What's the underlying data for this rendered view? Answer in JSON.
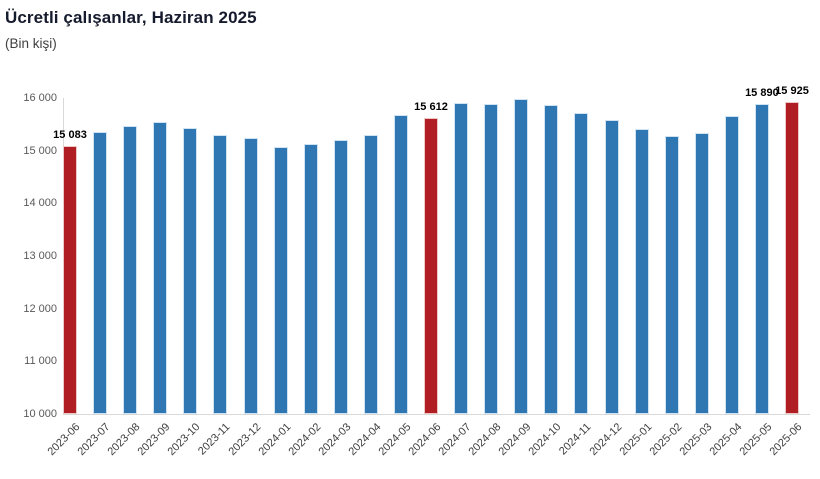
{
  "chart_data": {
    "type": "bar",
    "title": "Ücretli çalışanlar, Haziran 2025",
    "subtitle": "(Bin kişi)",
    "xlabel": "",
    "ylabel": "",
    "ylim": [
      10000,
      16000
    ],
    "grid": false,
    "legend": "none",
    "categories": [
      "2023-06",
      "2023-07",
      "2023-08",
      "2023-09",
      "2023-10",
      "2023-11",
      "2023-12",
      "2024-01",
      "2024-02",
      "2024-03",
      "2024-04",
      "2024-05",
      "2024-06",
      "2024-07",
      "2024-08",
      "2024-09",
      "2024-10",
      "2024-11",
      "2024-12",
      "2025-01",
      "2025-02",
      "2025-03",
      "2025-04",
      "2025-05",
      "2025-06"
    ],
    "values": [
      15083,
      15355,
      15470,
      15545,
      15440,
      15290,
      15250,
      15080,
      15125,
      15210,
      15290,
      15680,
      15612,
      15915,
      15885,
      15980,
      15865,
      15725,
      15590,
      15415,
      15285,
      15330,
      15655,
      15890,
      15925
    ],
    "highlighted_indices": [
      0,
      12,
      24
    ],
    "value_labels": [
      {
        "index": 0,
        "text": "15 083"
      },
      {
        "index": 12,
        "text": "15 612"
      },
      {
        "index": 23,
        "text": "15 890"
      },
      {
        "index": 24,
        "text": "15 925"
      }
    ],
    "y_ticks": [
      {
        "value": 16000,
        "label": "16 000"
      },
      {
        "value": 15000,
        "label": "15 000"
      },
      {
        "value": 14000,
        "label": "14 000"
      },
      {
        "value": 13000,
        "label": "13 000"
      },
      {
        "value": 12000,
        "label": "12 000"
      },
      {
        "value": 11000,
        "label": "11 000"
      },
      {
        "value": 10000,
        "label": "10 000"
      }
    ],
    "colors": {
      "bar": "#2e77b2",
      "bar_border": "#cfe3f2",
      "highlight": "#b01e24",
      "highlight_border": "#eec7c7",
      "axis_line": "#d9d9d9",
      "tick_text": "#595959",
      "xtick_text": "#404040",
      "value_label_text": "#000000",
      "title_text": "#151a2d",
      "background": "#ffffff"
    }
  }
}
